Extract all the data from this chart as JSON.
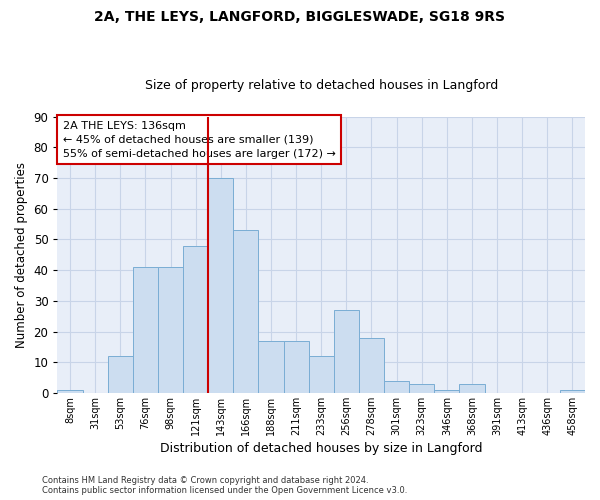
{
  "title1": "2A, THE LEYS, LANGFORD, BIGGLESWADE, SG18 9RS",
  "title2": "Size of property relative to detached houses in Langford",
  "xlabel": "Distribution of detached houses by size in Langford",
  "ylabel": "Number of detached properties",
  "categories": [
    "8sqm",
    "31sqm",
    "53sqm",
    "76sqm",
    "98sqm",
    "121sqm",
    "143sqm",
    "166sqm",
    "188sqm",
    "211sqm",
    "233sqm",
    "256sqm",
    "278sqm",
    "301sqm",
    "323sqm",
    "346sqm",
    "368sqm",
    "391sqm",
    "413sqm",
    "436sqm",
    "458sqm"
  ],
  "values": [
    1,
    0,
    12,
    41,
    41,
    48,
    70,
    53,
    17,
    17,
    12,
    27,
    18,
    4,
    3,
    1,
    3,
    0,
    0,
    0,
    1
  ],
  "bar_color": "#ccddf0",
  "bar_edge_color": "#7aadd4",
  "vline_x_index": 6,
  "vline_color": "#cc0000",
  "ylim": [
    0,
    90
  ],
  "yticks": [
    0,
    10,
    20,
    30,
    40,
    50,
    60,
    70,
    80,
    90
  ],
  "annotation_line1": "2A THE LEYS: 136sqm",
  "annotation_line2": "← 45% of detached houses are smaller (139)",
  "annotation_line3": "55% of semi-detached houses are larger (172) →",
  "annotation_box_color": "#ffffff",
  "annotation_box_edge": "#cc0000",
  "footer": "Contains HM Land Registry data © Crown copyright and database right 2024.\nContains public sector information licensed under the Open Government Licence v3.0.",
  "background_color": "#ffffff",
  "plot_bg_color": "#e8eef8",
  "grid_color": "#c8d4e8"
}
